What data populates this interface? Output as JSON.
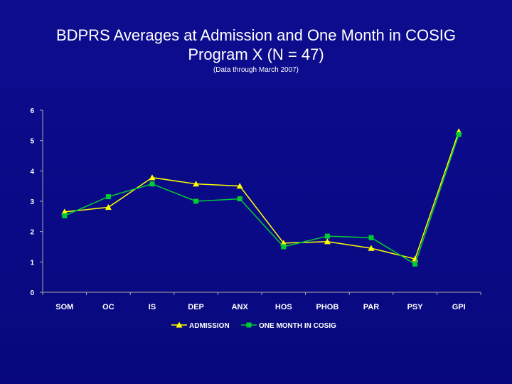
{
  "slide": {
    "title_line1": "BDPRS Averages at Admission and One Month in COSIG",
    "title_line2": "Program X (N = 47)",
    "subtitle": "(Data through March 2007)"
  },
  "colors": {
    "background": "#0a0a86",
    "admission": "#ffff00",
    "one_month": "#00cc33",
    "axis": "#aaaaaa"
  },
  "chart_data": {
    "type": "line",
    "categories": [
      "SOM",
      "OC",
      "IS",
      "DEP",
      "ANX",
      "HOS",
      "PHOB",
      "PAR",
      "PSY",
      "GPI"
    ],
    "ylim": [
      0,
      6
    ],
    "yticks": [
      0,
      1,
      2,
      3,
      4,
      5,
      6
    ],
    "grid": false,
    "legend_position": "bottom",
    "series": [
      {
        "name": "ADMISSION",
        "marker": "triangle",
        "color": "#ffff00",
        "values": [
          2.65,
          2.8,
          3.78,
          3.57,
          3.5,
          1.62,
          1.67,
          1.45,
          1.1,
          5.3
        ]
      },
      {
        "name": "ONE MONTH IN COSIG",
        "marker": "square",
        "color": "#00cc33",
        "values": [
          2.52,
          3.15,
          3.57,
          3.0,
          3.08,
          1.5,
          1.85,
          1.8,
          0.93,
          5.2
        ]
      }
    ]
  }
}
